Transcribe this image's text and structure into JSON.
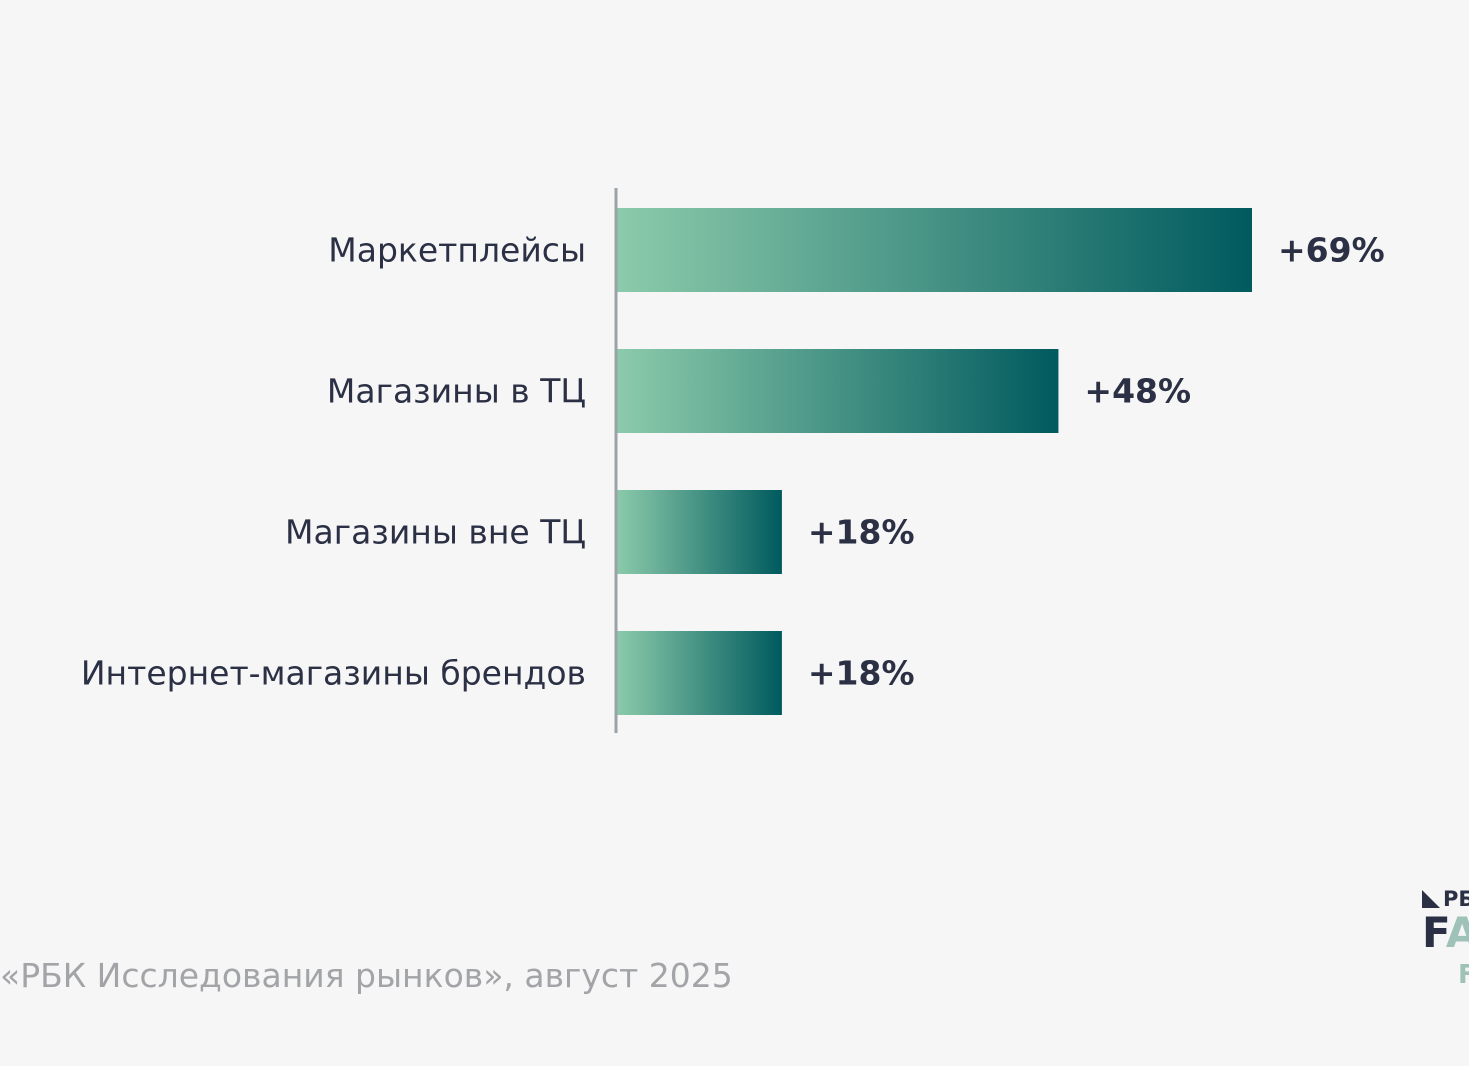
{
  "chart_data": {
    "type": "bar",
    "orientation": "horizontal",
    "categories": [
      "Маркетплейсы",
      "Магазины в ТЦ",
      "Магазины вне ТЦ",
      "Интернет-магазины брендов"
    ],
    "values": [
      69,
      48,
      18,
      18
    ],
    "value_labels": [
      "+69%",
      "+48%",
      "+18%",
      "+18%"
    ],
    "xlim": [
      0,
      69
    ],
    "grid": false,
    "legend": "none",
    "colors": {
      "bar_gradient_start": "#8ccbab",
      "bar_gradient_end": "#005a5e",
      "axis": "#9aa2a8",
      "text": "#2b3045"
    }
  },
  "source": "«РБК Исследования рынков», август 2025",
  "logo": {
    "top": "РБ",
    "middle_1": "F",
    "middle_2": "A",
    "bottom": "F"
  },
  "colors": {
    "background": "#f6f6f6",
    "source_text": "#a3a4a7"
  }
}
